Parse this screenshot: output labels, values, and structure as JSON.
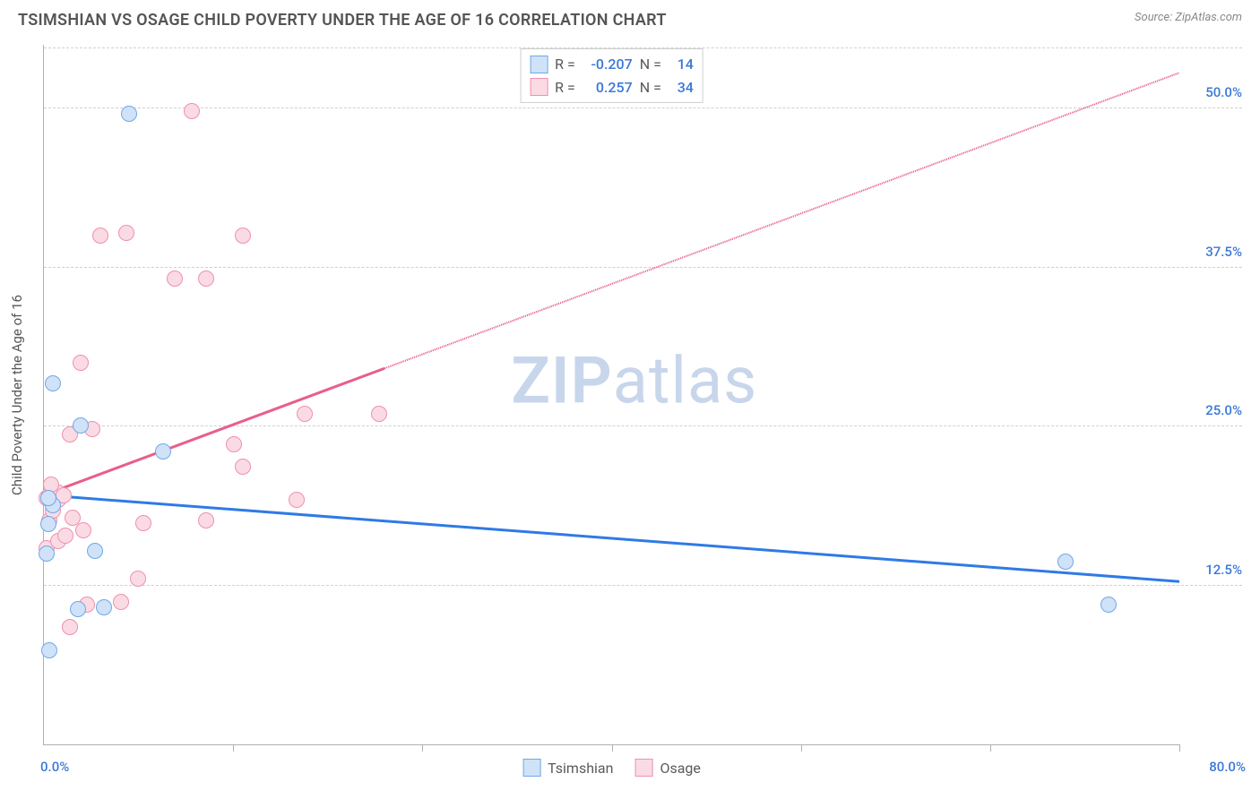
{
  "header": {
    "title": "TSIMSHIAN VS OSAGE CHILD POVERTY UNDER THE AGE OF 16 CORRELATION CHART",
    "source": "Source: ZipAtlas.com"
  },
  "watermark": {
    "zip": "ZIP",
    "atlas": "atlas",
    "color": "#c8d6ec"
  },
  "chart": {
    "type": "scatter",
    "y_axis_title": "Child Poverty Under the Age of 16",
    "xlim": [
      0,
      80
    ],
    "ylim": [
      0,
      55
    ],
    "x_ticks": [
      0,
      13.33,
      26.67,
      40,
      53.33,
      66.67,
      80
    ],
    "y_gridlines": [
      12.5,
      25.0,
      37.5,
      50.0
    ],
    "y_tick_labels": [
      "12.5%",
      "25.0%",
      "37.5%",
      "50.0%"
    ],
    "x_min_label": "0.0%",
    "x_max_label": "80.0%",
    "axis_label_color": "#3b78d8",
    "grid_color": "#d0d0d0",
    "background_color": "#ffffff"
  },
  "series": {
    "tsimshian": {
      "label": "Tsimshian",
      "marker_fill": "#cfe2f8",
      "marker_stroke": "#6fa8e8",
      "line_color": "#2f7ae5",
      "r": "-0.207",
      "n": "14",
      "points": [
        [
          0.4,
          7.4
        ],
        [
          2.4,
          10.6
        ],
        [
          4.2,
          10.8
        ],
        [
          0.2,
          15.0
        ],
        [
          3.6,
          15.2
        ],
        [
          0.3,
          17.3
        ],
        [
          0.6,
          18.8
        ],
        [
          8.4,
          23.0
        ],
        [
          2.6,
          25.1
        ],
        [
          0.6,
          28.4
        ],
        [
          6.0,
          49.6
        ],
        [
          72.0,
          14.4
        ],
        [
          75.0,
          11.0
        ],
        [
          0.3,
          19.4
        ]
      ],
      "trend": {
        "x1": 0,
        "y1": 19.6,
        "x2": 80,
        "y2": 12.8
      }
    },
    "osage": {
      "label": "Osage",
      "marker_fill": "#fadbe4",
      "marker_stroke": "#f08fb0",
      "line_color": "#e85f89",
      "r": "0.257",
      "n": "34",
      "points": [
        [
          1.8,
          9.2
        ],
        [
          3.0,
          11.0
        ],
        [
          5.4,
          11.2
        ],
        [
          6.6,
          13.0
        ],
        [
          0.2,
          15.4
        ],
        [
          1.0,
          16.0
        ],
        [
          1.5,
          16.4
        ],
        [
          2.8,
          16.8
        ],
        [
          0.4,
          17.6
        ],
        [
          2.0,
          17.8
        ],
        [
          7.0,
          17.4
        ],
        [
          11.4,
          17.6
        ],
        [
          0.6,
          18.4
        ],
        [
          1.0,
          19.2
        ],
        [
          0.2,
          19.4
        ],
        [
          0.4,
          19.6
        ],
        [
          0.6,
          19.8
        ],
        [
          1.0,
          19.8
        ],
        [
          1.4,
          19.6
        ],
        [
          17.8,
          19.2
        ],
        [
          0.5,
          20.4
        ],
        [
          14.0,
          21.8
        ],
        [
          13.4,
          23.6
        ],
        [
          1.8,
          24.4
        ],
        [
          3.4,
          24.8
        ],
        [
          18.4,
          26.0
        ],
        [
          23.6,
          26.0
        ],
        [
          2.6,
          30.0
        ],
        [
          9.2,
          36.6
        ],
        [
          11.4,
          36.6
        ],
        [
          4.0,
          40.0
        ],
        [
          5.8,
          40.2
        ],
        [
          14.0,
          40.0
        ],
        [
          10.4,
          49.8
        ]
      ],
      "trend": {
        "x1": 0,
        "y1": 19.6,
        "x2": 80,
        "y2": 52.8,
        "solid_until_x": 24
      }
    }
  },
  "stats_box": {
    "r_label": "R =",
    "n_label": "N =",
    "value_color": "#3b78d8"
  }
}
